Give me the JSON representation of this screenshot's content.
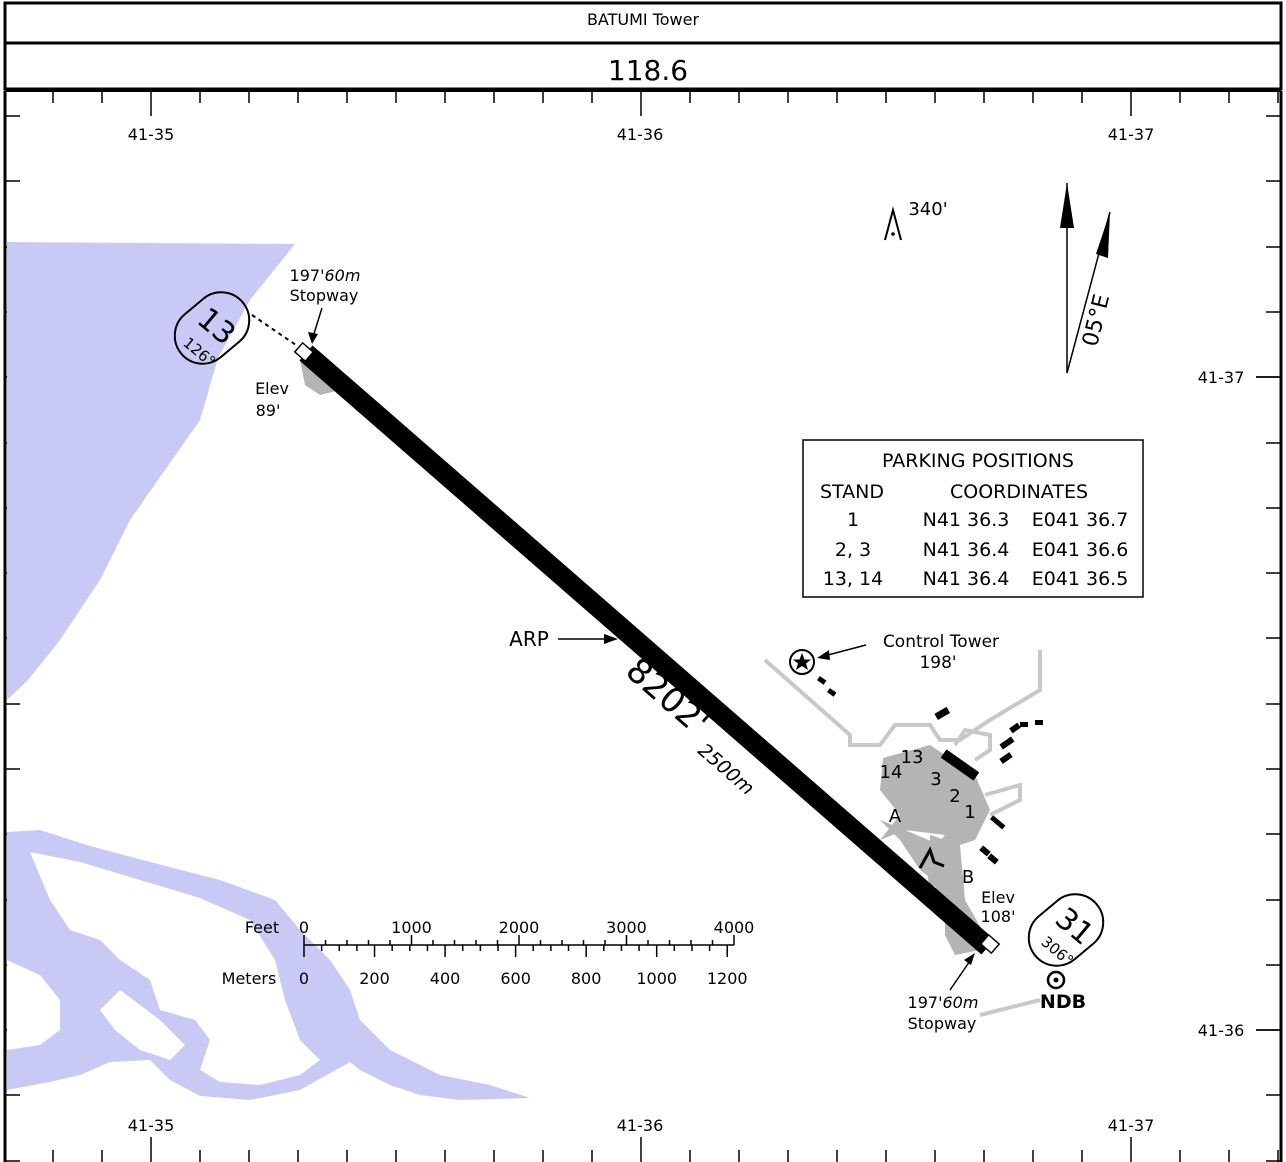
{
  "header": {
    "facility": "BATUMI Tower",
    "frequency": "118.6"
  },
  "coordinates": {
    "lon_top": [
      "41-35",
      "41-36",
      "41-37"
    ],
    "lon_bottom": [
      "41-35",
      "41-36",
      "41-37"
    ],
    "lat_left": [
      "41-37",
      "41-36"
    ],
    "lat_right": [
      "41-37",
      "41-36"
    ]
  },
  "runway": {
    "length_ft": "8202'",
    "length_m": "2500m",
    "end13": {
      "number": "13",
      "heading": "126°",
      "elev_label": "Elev",
      "elev": "89'"
    },
    "end31": {
      "number": "31",
      "heading": "306°",
      "elev_label": "Elev",
      "elev": "108'"
    },
    "stopway_nw": {
      "ft": "197'",
      "m": "60m",
      "label": "Stopway"
    },
    "stopway_se": {
      "ft": "197'",
      "m": "60m",
      "label": "Stopway"
    },
    "arp_label": "ARP"
  },
  "obstacle": {
    "elevation": "340'"
  },
  "magnetic": {
    "variation": "05°E"
  },
  "control_tower": {
    "label": "Control Tower",
    "elevation": "198'"
  },
  "ndb": {
    "label": "NDB"
  },
  "taxiways": [
    "A",
    "B"
  ],
  "stand_labels": [
    "13",
    "14",
    "3",
    "2",
    "1"
  ],
  "parking": {
    "title": "PARKING POSITIONS",
    "col_stand": "STAND",
    "col_coords": "COORDINATES",
    "rows": [
      {
        "stand": "1",
        "lat": "N41 36.3",
        "lon": "E041 36.7"
      },
      {
        "stand": "2, 3",
        "lat": "N41 36.4",
        "lon": "E041 36.6"
      },
      {
        "stand": "13, 14",
        "lat": "N41 36.4",
        "lon": "E041 36.5"
      }
    ]
  },
  "scale": {
    "feet_label": "Feet",
    "meters_label": "Meters",
    "feet_ticks": [
      "0",
      "1000",
      "2000",
      "3000",
      "4000"
    ],
    "meter_ticks": [
      "0",
      "200",
      "400",
      "600",
      "800",
      "1000",
      "1200"
    ]
  },
  "colors": {
    "water": "#c8caf5",
    "apron": "#b4b4b4",
    "taxi_line": "#c8c8c8",
    "runway": "#000000"
  }
}
